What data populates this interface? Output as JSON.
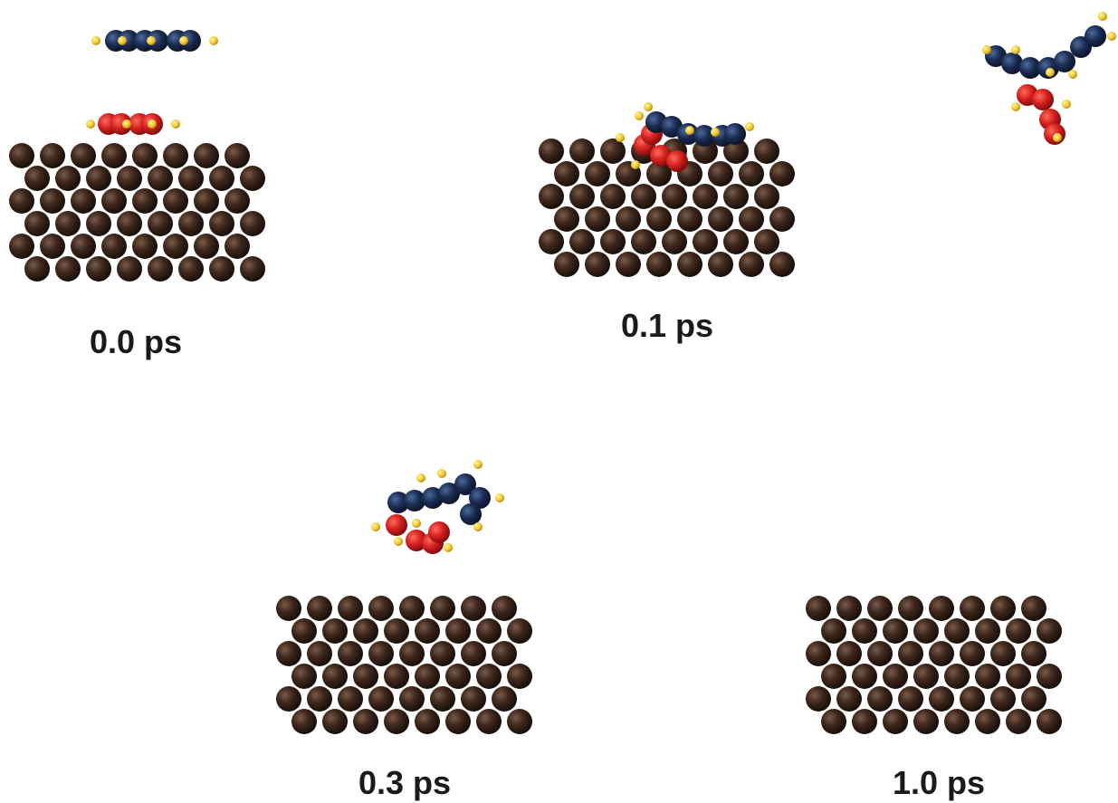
{
  "panels": [
    {
      "label": "0.0 ps"
    },
    {
      "label": "0.1 ps"
    },
    {
      "label": "0.3 ps"
    },
    {
      "label": "1.0 ps"
    }
  ]
}
